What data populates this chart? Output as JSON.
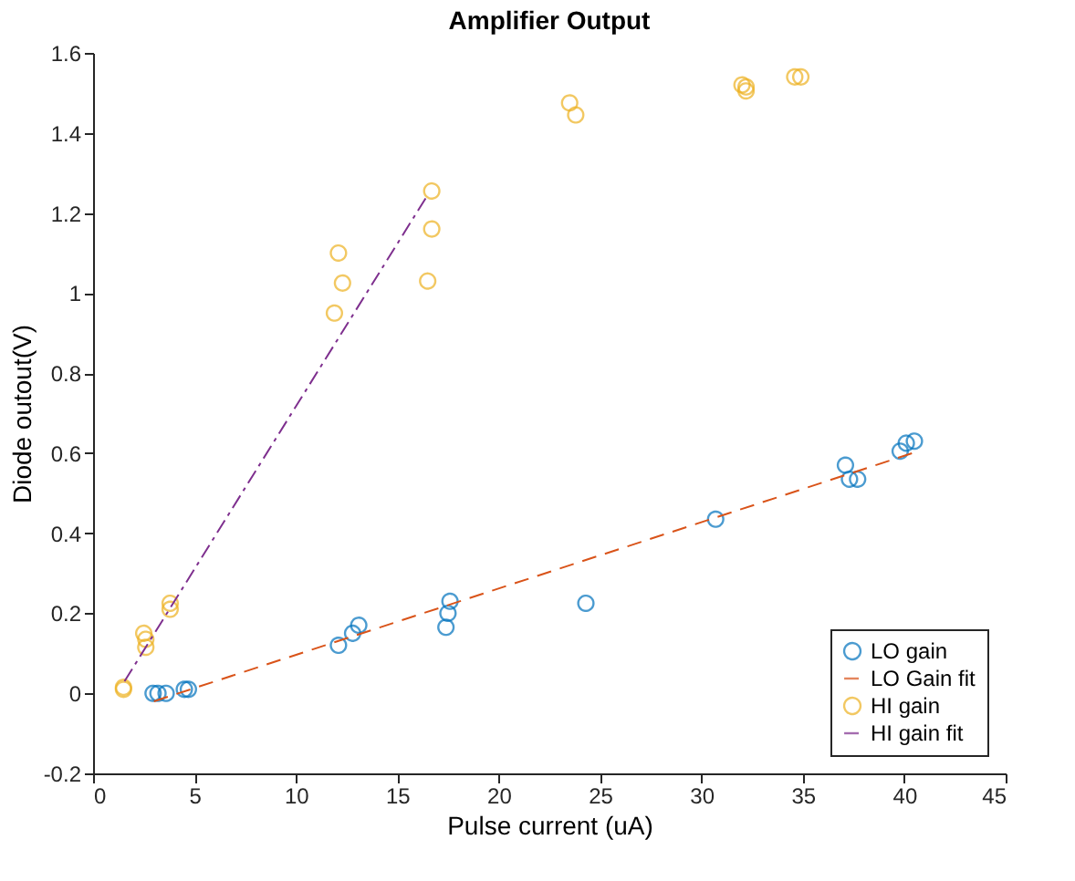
{
  "chart_data": {
    "type": "scatter",
    "title": "Amplifier Output",
    "xlabel": "Pulse current (uA)",
    "ylabel": "Diode outout(V)",
    "xlim": [
      0,
      45
    ],
    "xticks": [
      0,
      5,
      10,
      15,
      20,
      25,
      30,
      35,
      40,
      45
    ],
    "ylim": [
      -0.2,
      1.6
    ],
    "yticks": [
      -0.2,
      0,
      0.2,
      0.4,
      0.6,
      0.8,
      1,
      1.2,
      1.4,
      1.6
    ],
    "grid": false,
    "legend": "bottom right",
    "series": [
      {
        "name": "LO gain",
        "type": "scatter",
        "marker": "circle",
        "color": "#0072bd",
        "x": [
          2.96,
          3.2,
          3.6,
          4.5,
          4.7,
          12.1,
          12.8,
          13.1,
          17.4,
          17.5,
          17.6,
          24.3,
          30.7,
          37.1,
          37.3,
          37.7,
          39.8,
          40.1,
          40.5
        ],
        "values": [
          0,
          0,
          0,
          0.01,
          0.01,
          0.12,
          0.15,
          0.17,
          0.165,
          0.2,
          0.23,
          0.225,
          0.435,
          0.57,
          0.535,
          0.535,
          0.605,
          0.625,
          0.63
        ]
      },
      {
        "name": "LO Gain fit",
        "type": "line",
        "marker": "none",
        "line_style": "dashed",
        "color": "#d95319",
        "x": [
          3.0,
          40.4
        ],
        "values": [
          -0.02,
          0.6
        ]
      },
      {
        "name": "HI gain",
        "type": "scatter",
        "marker": "circle",
        "color": "#edb120",
        "x": [
          1.5,
          1.5,
          2.6,
          2.6,
          2.5,
          3.8,
          3.8,
          11.9,
          12.1,
          12.3,
          16.5,
          16.7,
          16.7,
          23.5,
          23.8,
          32.0,
          32.2,
          32.2,
          34.6,
          34.9
        ],
        "values": [
          0.01,
          0.015,
          0.135,
          0.115,
          0.15,
          0.225,
          0.21,
          0.95,
          1.1,
          1.025,
          1.03,
          1.16,
          1.255,
          1.475,
          1.445,
          1.52,
          1.515,
          1.505,
          1.54,
          1.54
        ]
      },
      {
        "name": "HI gain fit",
        "type": "line",
        "marker": "none",
        "line_style": "dashdot",
        "color": "#7e2f8e",
        "x": [
          1.55,
          16.5
        ],
        "values": [
          0.03,
          1.245
        ]
      }
    ]
  }
}
